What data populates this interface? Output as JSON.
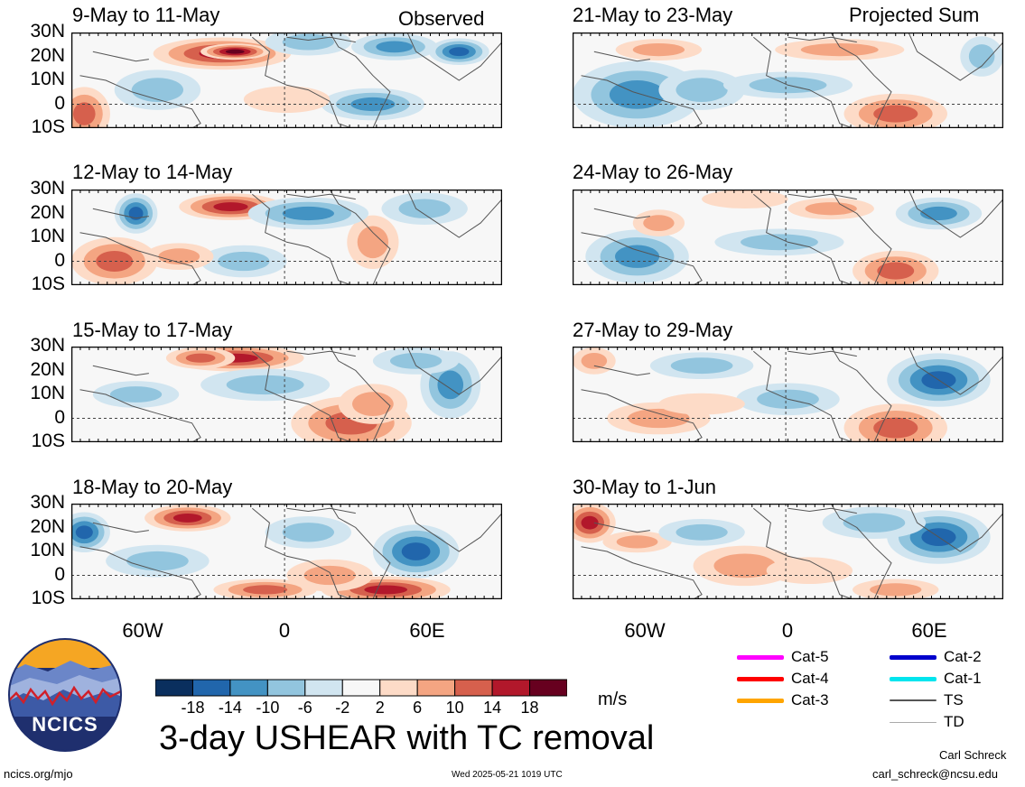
{
  "panels_left": [
    {
      "title": "9-May to 11-May",
      "tag": "Observed"
    },
    {
      "title": "12-May to 14-May",
      "tag": ""
    },
    {
      "title": "15-May to 17-May",
      "tag": ""
    },
    {
      "title": "18-May to 20-May",
      "tag": ""
    }
  ],
  "panels_right": [
    {
      "title": "21-May to 23-May",
      "tag": "Projected Sum"
    },
    {
      "title": "24-May to 26-May",
      "tag": ""
    },
    {
      "title": "27-May to 29-May",
      "tag": ""
    },
    {
      "title": "30-May to 1-Jun",
      "tag": ""
    }
  ],
  "lat_labels": [
    "30N",
    "20N",
    "10N",
    "0",
    "10S"
  ],
  "lon_labels": [
    "60W",
    "0",
    "60E"
  ],
  "colorbar": {
    "colors": [
      "#0a2f5e",
      "#2166ac",
      "#4393c3",
      "#92c5de",
      "#d1e5f0",
      "#f7f7f7",
      "#fddbc7",
      "#f4a582",
      "#d6604d",
      "#b2182b",
      "#67001f"
    ],
    "ticks": [
      "-18",
      "-14",
      "-10",
      "-6",
      "-2",
      "2",
      "6",
      "10",
      "14",
      "18"
    ],
    "units": "m/s"
  },
  "legend": [
    {
      "label": "Cat-5",
      "color": "#ff00ff"
    },
    {
      "label": "Cat-4",
      "color": "#ff0000"
    },
    {
      "label": "Cat-3",
      "color": "#ffa500"
    },
    {
      "label": "Cat-2",
      "color": "#0000cc"
    },
    {
      "label": "Cat-1",
      "color": "#00e5ee"
    },
    {
      "label": "TS",
      "color": "#555555"
    },
    {
      "label": "TD",
      "color": "#aaaaaa"
    }
  ],
  "main_title": "3-day USHEAR with TC removal",
  "logo_text": "NCICS",
  "footer": {
    "left": "ncics.org/mjo",
    "center": "Wed 2025-05-21 1019 UTC",
    "author": "Carl Schreck",
    "email": "carl_schreck@ncsu.edu"
  }
}
